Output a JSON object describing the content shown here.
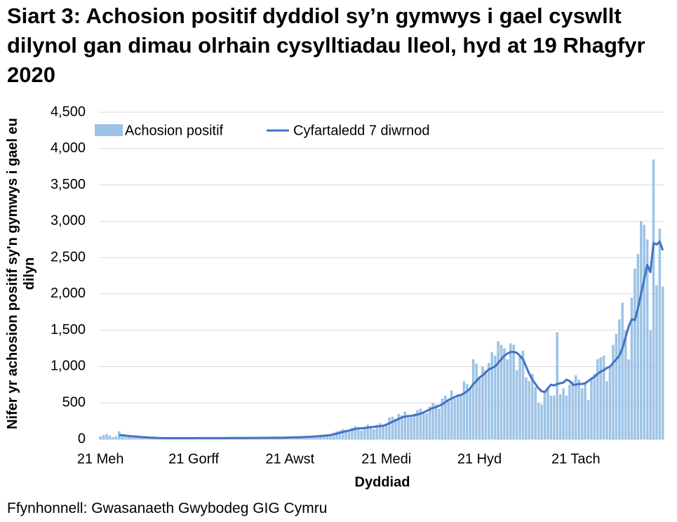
{
  "chart_data": {
    "type": "bar-line",
    "title": "Siart 3: Achosion positif dyddiol sy’n gymwys i gael cyswllt dilynol gan dimau olrhain cysylltiadau lleol, hyd at 19 Rhagfyr 2020",
    "y_label": "Nifer yr achosion positif sy'n gymwys i gael eu dilyn",
    "x_label": "Dyddiad",
    "source": "Ffynhonnell: Gwasanaeth Gwybodeg GIG Cymru",
    "categories": [
      "21 Meh",
      null,
      null,
      null,
      null,
      null,
      null,
      null,
      null,
      null,
      null,
      null,
      null,
      null,
      null,
      null,
      null,
      null,
      null,
      null,
      null,
      null,
      null,
      null,
      null,
      null,
      null,
      null,
      null,
      null,
      "21 Gorff",
      null,
      null,
      null,
      null,
      null,
      null,
      null,
      null,
      null,
      null,
      null,
      null,
      null,
      null,
      null,
      null,
      null,
      null,
      null,
      null,
      null,
      null,
      null,
      null,
      null,
      null,
      null,
      null,
      null,
      null,
      "21 Awst",
      null,
      null,
      null,
      null,
      null,
      null,
      null,
      null,
      null,
      null,
      null,
      null,
      null,
      null,
      null,
      null,
      null,
      null,
      null,
      null,
      null,
      null,
      null,
      null,
      null,
      null,
      null,
      null,
      null,
      null,
      "21 Medi",
      null,
      null,
      null,
      null,
      null,
      null,
      null,
      null,
      null,
      null,
      null,
      null,
      null,
      null,
      null,
      null,
      null,
      null,
      null,
      null,
      null,
      null,
      null,
      null,
      null,
      null,
      null,
      null,
      null,
      "21 Hyd",
      null,
      null,
      null,
      null,
      null,
      null,
      null,
      null,
      null,
      null,
      null,
      null,
      null,
      null,
      null,
      null,
      null,
      null,
      null,
      null,
      null,
      null,
      null,
      null,
      null,
      null,
      null,
      null,
      null,
      null,
      "21 Tach",
      null,
      null,
      null,
      null,
      null,
      null,
      null,
      null,
      null,
      null,
      null,
      null,
      null,
      null,
      null,
      null,
      null,
      null,
      null,
      null,
      null,
      null,
      null,
      null,
      null,
      null,
      null,
      null
    ],
    "series": [
      {
        "name": "Achosion positif",
        "type": "bar",
        "color": "#9dc3e6",
        "values": [
          40,
          60,
          70,
          50,
          30,
          40,
          110,
          50,
          40,
          40,
          30,
          30,
          20,
          20,
          25,
          20,
          15,
          15,
          20,
          15,
          15,
          10,
          15,
          15,
          20,
          15,
          15,
          10,
          20,
          15,
          15,
          20,
          15,
          15,
          10,
          15,
          15,
          20,
          15,
          15,
          20,
          15,
          10,
          15,
          20,
          15,
          20,
          15,
          15,
          20,
          20,
          25,
          15,
          20,
          25,
          20,
          15,
          20,
          25,
          30,
          25,
          30,
          25,
          30,
          20,
          35,
          40,
          30,
          45,
          40,
          50,
          45,
          60,
          50,
          60,
          90,
          110,
          120,
          140,
          110,
          130,
          160,
          180,
          150,
          120,
          170,
          200,
          160,
          140,
          200,
          220,
          180,
          200,
          300,
          310,
          280,
          350,
          330,
          380,
          330,
          300,
          350,
          400,
          420,
          380,
          360,
          450,
          500,
          480,
          420,
          560,
          600,
          540,
          670,
          560,
          600,
          620,
          800,
          760,
          700,
          1100,
          1040,
          850,
          1000,
          950,
          1050,
          1200,
          1150,
          1350,
          1300,
          1250,
          1100,
          1320,
          1300,
          950,
          1150,
          1220,
          850,
          800,
          900,
          720,
          500,
          480,
          650,
          700,
          600,
          600,
          1470,
          620,
          700,
          600,
          750,
          800,
          880,
          820,
          700,
          760,
          540,
          850,
          900,
          1100,
          1130,
          1150,
          800,
          1000,
          1300,
          1450,
          1650,
          1880,
          1500,
          1100,
          1950,
          2350,
          2550,
          3000,
          2950,
          2750,
          1500,
          3850,
          2120,
          2900,
          2100
        ]
      },
      {
        "name": "Cyfartaledd 7 diwrnod",
        "type": "line",
        "color": "#4472c4",
        "values": [
          null,
          null,
          null,
          null,
          null,
          null,
          55,
          55,
          50,
          45,
          40,
          40,
          35,
          30,
          28,
          25,
          22,
          20,
          18,
          17,
          16,
          15,
          15,
          15,
          15,
          15,
          15,
          15,
          15,
          15,
          15,
          16,
          16,
          16,
          16,
          16,
          16,
          16,
          16,
          16,
          16,
          17,
          17,
          17,
          17,
          17,
          17,
          17,
          18,
          18,
          18,
          18,
          19,
          19,
          20,
          20,
          20,
          20,
          21,
          22,
          23,
          24,
          25,
          26,
          27,
          29,
          31,
          33,
          35,
          38,
          41,
          45,
          48,
          52,
          58,
          66,
          76,
          88,
          100,
          110,
          120,
          130,
          140,
          150,
          150,
          155,
          160,
          165,
          170,
          175,
          180,
          185,
          200,
          220,
          240,
          260,
          280,
          300,
          310,
          320,
          320,
          330,
          340,
          350,
          370,
          390,
          410,
          430,
          440,
          460,
          480,
          510,
          540,
          560,
          580,
          600,
          610,
          630,
          660,
          700,
          760,
          800,
          850,
          880,
          920,
          960,
          980,
          1000,
          1050,
          1100,
          1150,
          1180,
          1200,
          1200,
          1190,
          1150,
          1100,
          1000,
          900,
          820,
          760,
          700,
          660,
          650,
          700,
          750,
          740,
          760,
          770,
          780,
          820,
          800,
          750,
          750,
          760,
          760,
          770,
          800,
          830,
          860,
          900,
          930,
          950,
          980,
          1000,
          1050,
          1100,
          1150,
          1250,
          1400,
          1550,
          1650,
          1640,
          1800,
          2000,
          2200,
          2400,
          2300,
          2700,
          2680,
          2720,
          2600
        ]
      }
    ],
    "ylim": [
      0,
      4500
    ],
    "yticks": [
      0,
      500,
      {
        "value": 1000,
        "label": "1,000"
      },
      {
        "value": 1500,
        "label": "1,500"
      },
      {
        "value": 2000,
        "label": "2,000"
      },
      {
        "value": 2500,
        "label": "2,500"
      },
      {
        "value": 3000,
        "label": "3,000"
      },
      {
        "value": 3500,
        "label": "3,500"
      },
      {
        "value": 4000,
        "label": "4,000"
      },
      {
        "value": 4500,
        "label": "4,500"
      }
    ],
    "grid": true,
    "legend": "top"
  }
}
